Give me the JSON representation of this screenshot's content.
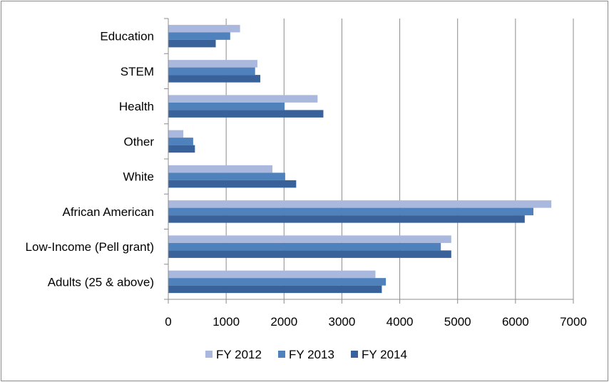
{
  "chart_data": {
    "type": "bar",
    "orientation": "horizontal",
    "categories": [
      "Education ",
      "STEM",
      "Health",
      "Other",
      "White",
      "African American",
      "Low-Income (Pell grant)",
      "Adults  (25 & above)"
    ],
    "series": [
      {
        "name": "FY 2012",
        "color": "#a9b8dc",
        "values": [
          1240,
          1540,
          2580,
          260,
          1800,
          6620,
          4890,
          3580
        ]
      },
      {
        "name": "FY 2013",
        "color": "#4f81bd",
        "values": [
          1070,
          1500,
          2010,
          430,
          2020,
          6310,
          4710,
          3760
        ]
      },
      {
        "name": "FY 2014",
        "color": "#3a629a",
        "values": [
          820,
          1590,
          2680,
          460,
          2210,
          6160,
          4890,
          3690
        ]
      }
    ],
    "x_ticks": [
      "0",
      "1000",
      "2000",
      "3000",
      "4000",
      "5000",
      "6000",
      "7000"
    ],
    "xlim": [
      0,
      7000
    ],
    "grid": true,
    "legend_position": "bottom"
  }
}
